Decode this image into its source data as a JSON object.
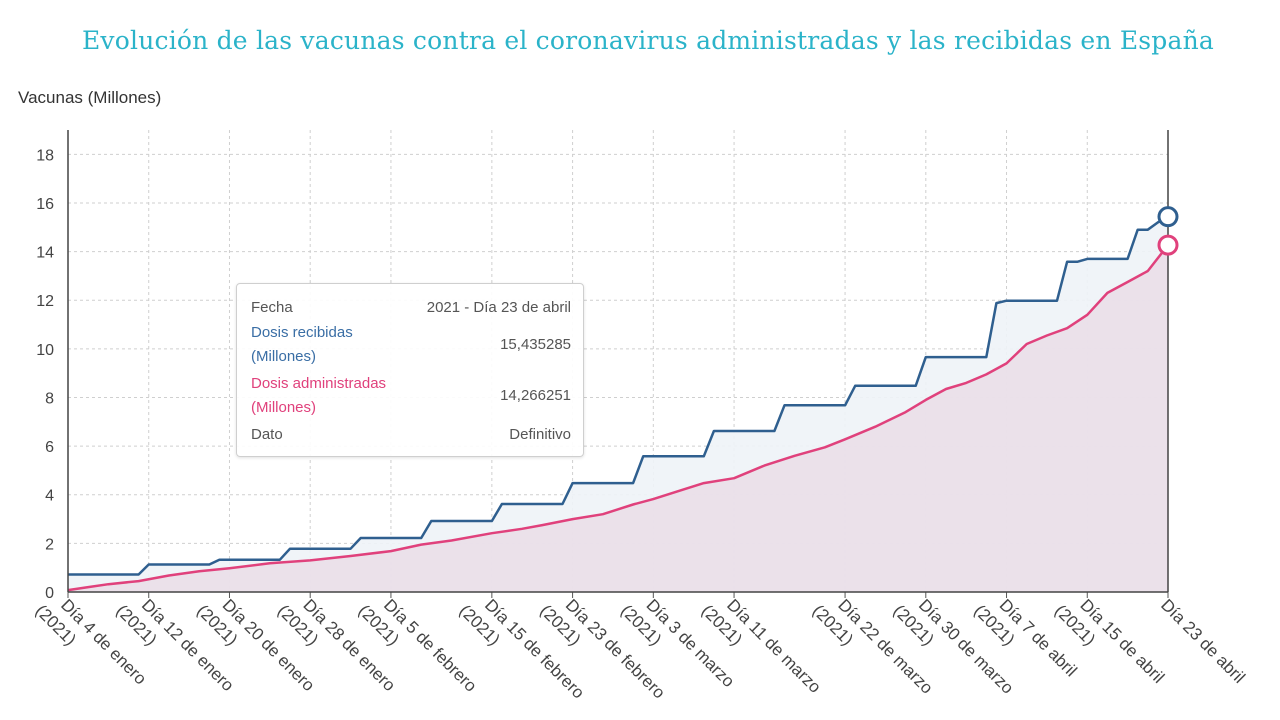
{
  "chart_data": {
    "type": "line",
    "title": "Evolución de las vacunas contra el coronavirus administradas y las recibidas en España",
    "ylabel": "Vacunas (Millones)",
    "xlabel": "",
    "ylim": [
      0,
      19
    ],
    "yticks": [
      0,
      2,
      4,
      6,
      8,
      10,
      12,
      14,
      16,
      18
    ],
    "grid": true,
    "x_ticks": [
      {
        "date": "2021-01-04",
        "line1": "Día 4 de enero",
        "line2": "(2021)"
      },
      {
        "date": "2021-01-12",
        "line1": "Día 12 de enero",
        "line2": "(2021)"
      },
      {
        "date": "2021-01-20",
        "line1": "Día 20 de enero",
        "line2": "(2021)"
      },
      {
        "date": "2021-01-28",
        "line1": "Día 28 de enero",
        "line2": "(2021)"
      },
      {
        "date": "2021-02-05",
        "line1": "Día 5 de febrero",
        "line2": "(2021)"
      },
      {
        "date": "2021-02-15",
        "line1": "Día 15 de febrero",
        "line2": "(2021)"
      },
      {
        "date": "2021-02-23",
        "line1": "Día 23 de febrero",
        "line2": "(2021)"
      },
      {
        "date": "2021-03-03",
        "line1": "Día 3 de marzo",
        "line2": "(2021)"
      },
      {
        "date": "2021-03-11",
        "line1": "Día 11 de marzo",
        "line2": "(2021)"
      },
      {
        "date": "2021-03-22",
        "line1": "Día 22 de marzo",
        "line2": "(2021)"
      },
      {
        "date": "2021-03-30",
        "line1": "Día 30 de marzo",
        "line2": "(2021)"
      },
      {
        "date": "2021-04-07",
        "line1": "Día 7 de abril",
        "line2": "(2021)"
      },
      {
        "date": "2021-04-15",
        "line1": "Día 15 de abril",
        "line2": "(2021)"
      },
      {
        "date": "2021-04-23",
        "line1": "Día 23 de abril",
        "line2": ""
      }
    ],
    "series": [
      {
        "name": "Dosis recibidas (Millones)",
        "color": "#2f5f8f",
        "fill": "#eef3f7",
        "step": true,
        "points": [
          [
            "2021-01-04",
            0.72
          ],
          [
            "2021-01-11",
            0.72
          ],
          [
            "2021-01-12",
            1.13
          ],
          [
            "2021-01-18",
            1.13
          ],
          [
            "2021-01-19",
            1.33
          ],
          [
            "2021-01-25",
            1.33
          ],
          [
            "2021-01-26",
            1.78
          ],
          [
            "2021-02-01",
            1.78
          ],
          [
            "2021-02-02",
            2.22
          ],
          [
            "2021-02-08",
            2.22
          ],
          [
            "2021-02-09",
            2.92
          ],
          [
            "2021-02-15",
            2.92
          ],
          [
            "2021-02-16",
            3.62
          ],
          [
            "2021-02-22",
            3.62
          ],
          [
            "2021-02-23",
            4.48
          ],
          [
            "2021-03-01",
            4.48
          ],
          [
            "2021-03-02",
            5.58
          ],
          [
            "2021-03-08",
            5.58
          ],
          [
            "2021-03-09",
            6.62
          ],
          [
            "2021-03-15",
            6.62
          ],
          [
            "2021-03-16",
            7.68
          ],
          [
            "2021-03-22",
            7.68
          ],
          [
            "2021-03-23",
            8.48
          ],
          [
            "2021-03-29",
            8.48
          ],
          [
            "2021-03-30",
            9.66
          ],
          [
            "2021-04-05",
            9.66
          ],
          [
            "2021-04-06",
            11.88
          ],
          [
            "2021-04-07",
            11.98
          ],
          [
            "2021-04-12",
            11.98
          ],
          [
            "2021-04-13",
            13.58
          ],
          [
            "2021-04-14",
            13.58
          ],
          [
            "2021-04-15",
            13.7
          ],
          [
            "2021-04-19",
            13.7
          ],
          [
            "2021-04-20",
            14.9
          ],
          [
            "2021-04-21",
            14.9
          ],
          [
            "2021-04-22",
            15.2
          ],
          [
            "2021-04-23",
            15.435285
          ]
        ]
      },
      {
        "name": "Dosis administradas (Millones)",
        "color": "#e0417c",
        "fill": "#eadbe6",
        "step": false,
        "points": [
          [
            "2021-01-04",
            0.08
          ],
          [
            "2021-01-06",
            0.2
          ],
          [
            "2021-01-08",
            0.32
          ],
          [
            "2021-01-11",
            0.45
          ],
          [
            "2021-01-14",
            0.68
          ],
          [
            "2021-01-17",
            0.85
          ],
          [
            "2021-01-20",
            0.98
          ],
          [
            "2021-01-24",
            1.18
          ],
          [
            "2021-01-28",
            1.3
          ],
          [
            "2021-02-01",
            1.48
          ],
          [
            "2021-02-05",
            1.68
          ],
          [
            "2021-02-08",
            1.95
          ],
          [
            "2021-02-11",
            2.12
          ],
          [
            "2021-02-15",
            2.42
          ],
          [
            "2021-02-18",
            2.6
          ],
          [
            "2021-02-20",
            2.75
          ],
          [
            "2021-02-23",
            3.0
          ],
          [
            "2021-02-26",
            3.2
          ],
          [
            "2021-03-01",
            3.6
          ],
          [
            "2021-03-03",
            3.82
          ],
          [
            "2021-03-06",
            4.22
          ],
          [
            "2021-03-08",
            4.48
          ],
          [
            "2021-03-11",
            4.68
          ],
          [
            "2021-03-14",
            5.2
          ],
          [
            "2021-03-17",
            5.6
          ],
          [
            "2021-03-20",
            5.95
          ],
          [
            "2021-03-22",
            6.28
          ],
          [
            "2021-03-25",
            6.8
          ],
          [
            "2021-03-28",
            7.4
          ],
          [
            "2021-03-30",
            7.9
          ],
          [
            "2021-04-01",
            8.35
          ],
          [
            "2021-04-03",
            8.6
          ],
          [
            "2021-04-05",
            8.95
          ],
          [
            "2021-04-07",
            9.4
          ],
          [
            "2021-04-09",
            10.2
          ],
          [
            "2021-04-11",
            10.55
          ],
          [
            "2021-04-13",
            10.85
          ],
          [
            "2021-04-15",
            11.4
          ],
          [
            "2021-04-17",
            12.3
          ],
          [
            "2021-04-19",
            12.75
          ],
          [
            "2021-04-21",
            13.2
          ],
          [
            "2021-04-23",
            14.266251
          ]
        ]
      }
    ]
  },
  "tooltip": {
    "fecha_label": "Fecha",
    "fecha_value": "2021 - Día 23 de abril",
    "recibidas_label_1": "Dosis recibidas",
    "recibidas_label_2": "(Millones)",
    "recibidas_value": "15,435285",
    "administradas_label_1": "Dosis administradas",
    "administradas_label_2": "(Millones)",
    "administradas_value": "14,266251",
    "dato_label": "Dato",
    "dato_value": "Definitivo"
  }
}
